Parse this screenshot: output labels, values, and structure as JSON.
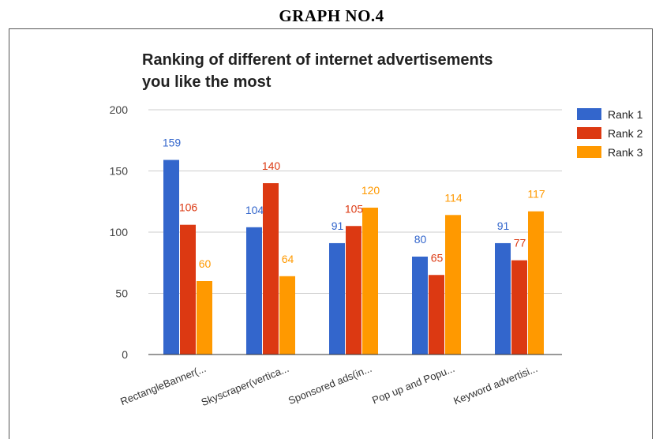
{
  "page_heading": "GRAPH NO.4",
  "chart_data": {
    "type": "bar",
    "title_lines": [
      "Ranking of different of internet advertisements",
      "you like the most"
    ],
    "categories": [
      "RectangleBanner(...",
      "Skyscraper(vertica...",
      "Sponsored ads(in...",
      "Pop up and Popu...",
      "Keyword advertisi..."
    ],
    "series": [
      {
        "name": "Rank 1",
        "color": "#3366cc",
        "values": [
          159,
          104,
          91,
          80,
          91
        ]
      },
      {
        "name": "Rank 2",
        "color": "#dc3912",
        "values": [
          106,
          140,
          105,
          65,
          77
        ]
      },
      {
        "name": "Rank 3",
        "color": "#ff9900",
        "values": [
          60,
          64,
          120,
          114,
          117
        ]
      }
    ],
    "y_ticks": [
      0,
      50,
      100,
      150,
      200
    ],
    "ylim": [
      0,
      200
    ],
    "grid": true,
    "legend_position": "right"
  }
}
